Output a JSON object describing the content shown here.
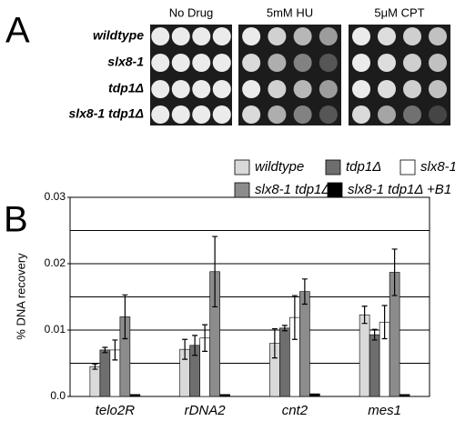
{
  "panel_a": {
    "label": "A",
    "columns": [
      "No Drug",
      "5mM HU",
      "5μM CPT"
    ],
    "rows": [
      "wildtype",
      "slx8-1",
      "tdp1Δ",
      "slx8-1 tdp1Δ"
    ]
  },
  "chart_data": {
    "type": "bar",
    "panel_label": "B",
    "ylabel": "% DNA recovery",
    "categories": [
      "telo2R",
      "rDNA2",
      "cnt2",
      "mes1"
    ],
    "series": [
      {
        "name": "wildtype",
        "color": "#d9d9d9",
        "values": [
          0.0045,
          0.0071,
          0.008,
          0.0123
        ],
        "errors": [
          0.0004,
          0.0015,
          0.0022,
          0.0013
        ]
      },
      {
        "name": "tdp1Δ",
        "color": "#6e6e6e",
        "values": [
          0.007,
          0.0077,
          0.0103,
          0.0093
        ],
        "errors": [
          0.0004,
          0.0015,
          0.0004,
          0.0008
        ]
      },
      {
        "name": "slx8-1",
        "color": "#ffffff",
        "values": [
          0.007,
          0.0088,
          0.0119,
          0.0112
        ],
        "errors": [
          0.0015,
          0.002,
          0.0033,
          0.0025
        ]
      },
      {
        "name": "slx8-1 tdp1Δ",
        "color": "#8c8c8c",
        "values": [
          0.012,
          0.0188,
          0.0158,
          0.0187
        ],
        "errors": [
          0.0033,
          0.0053,
          0.0019,
          0.0035
        ]
      },
      {
        "name": "slx8-1 tdp1Δ +B1",
        "color": "#000000",
        "values": [
          0.0003,
          0.0003,
          0.0004,
          0.0003
        ],
        "errors": [
          0,
          0,
          0,
          0
        ]
      }
    ],
    "ylim": [
      0,
      0.03
    ],
    "yticks": [
      {
        "value": 0,
        "label": "0.0"
      },
      0.01,
      0.02,
      0.03
    ],
    "ygrid": [
      0.005,
      0.01,
      0.015,
      0.02,
      0.025,
      0.03
    ],
    "grid": true
  }
}
